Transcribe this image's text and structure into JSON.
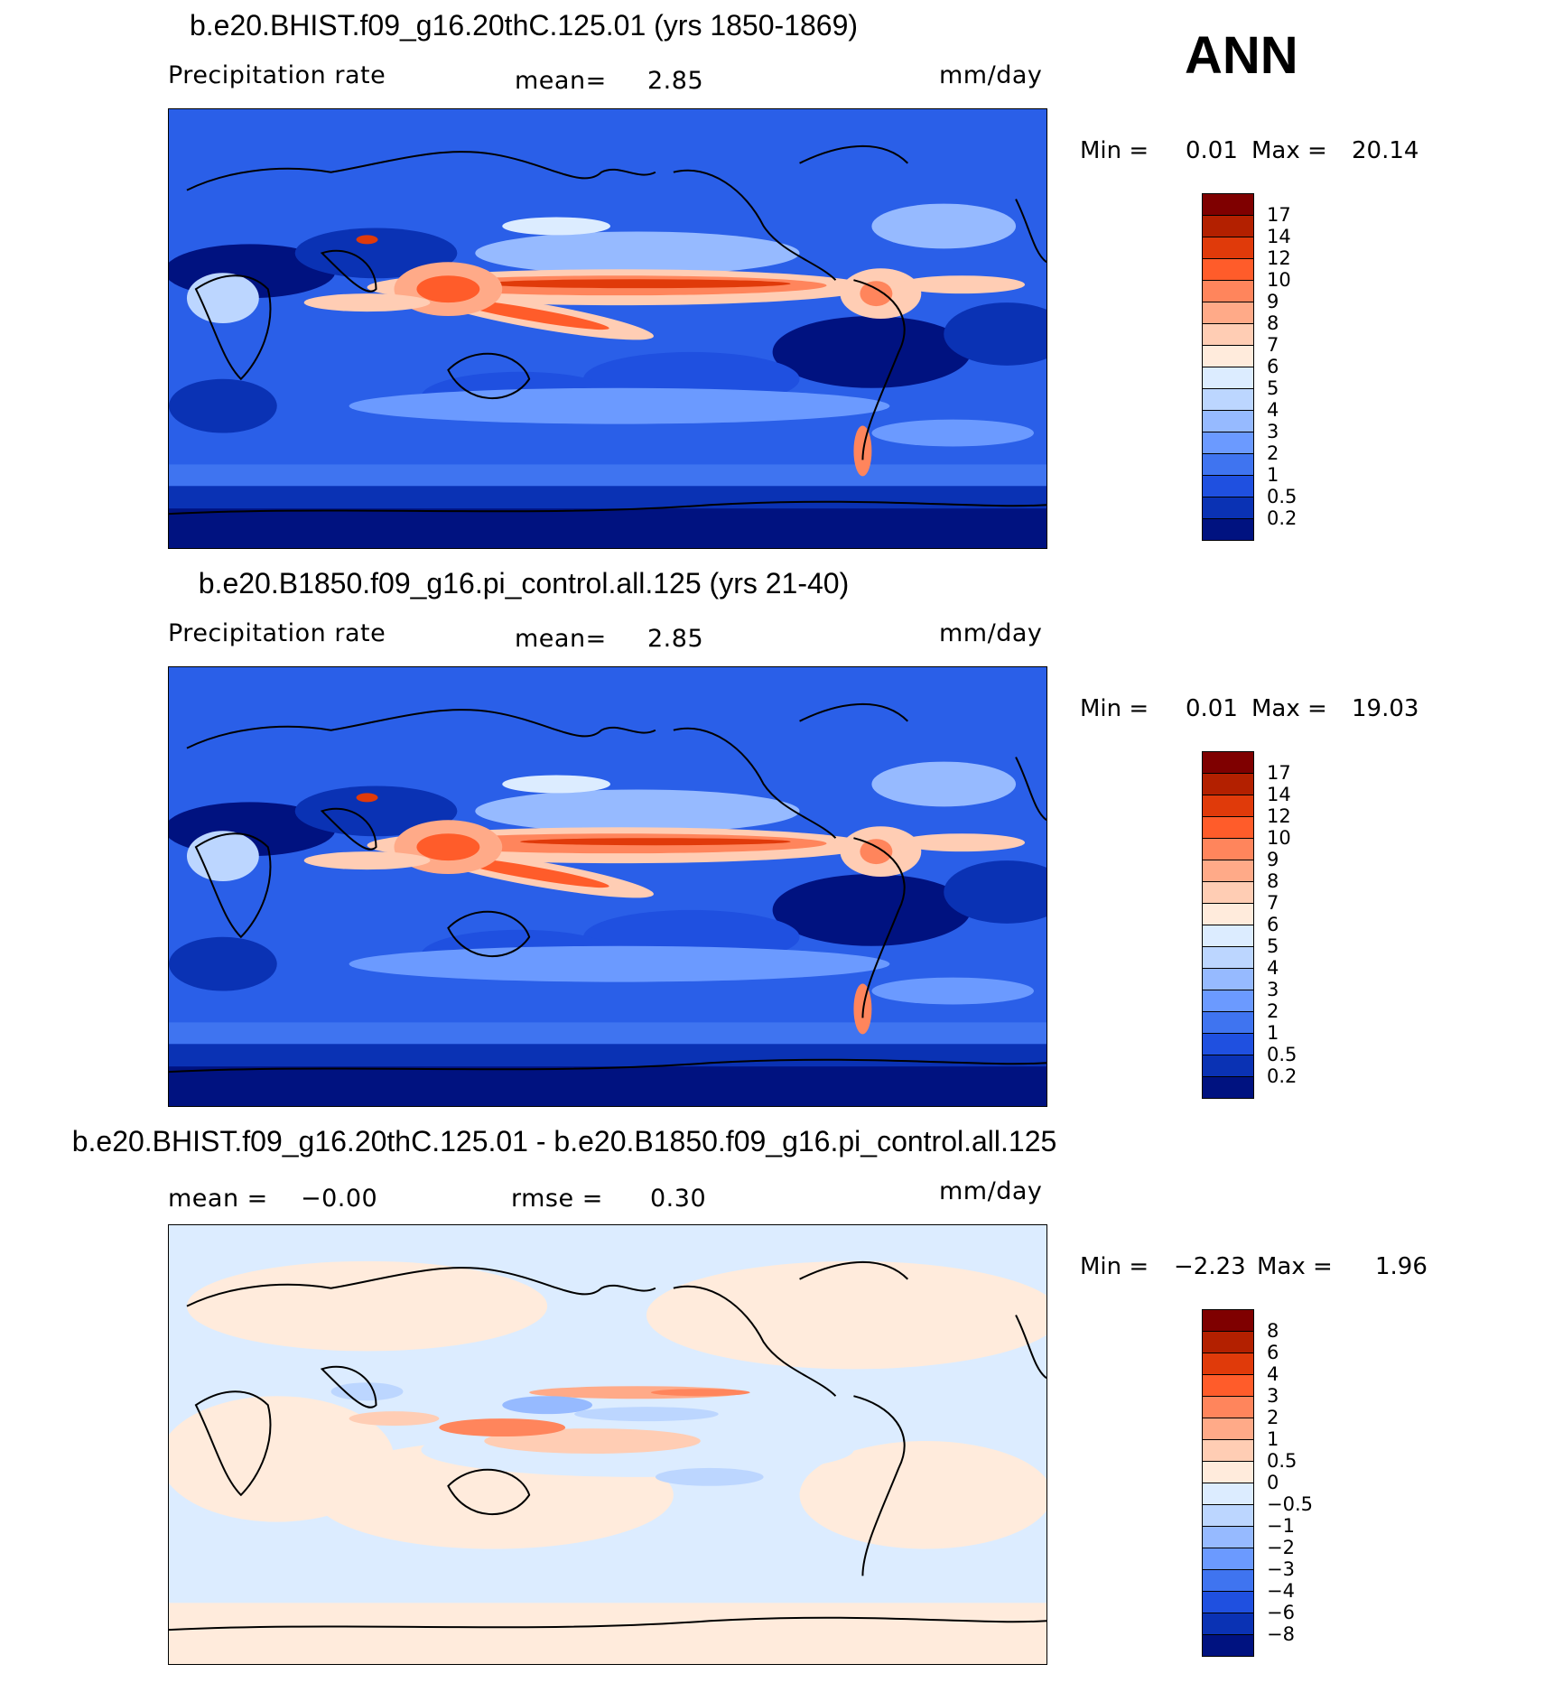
{
  "season": "ANN",
  "panels": [
    {
      "title": "b.e20.BHIST.f09_g16.20thC.125.01 (yrs 1850-1869)",
      "left_label": "Precipitation rate",
      "mid_label": "mean=",
      "mid_value": "2.85",
      "units": "mm/day",
      "min_label": "Min =",
      "min_value": "0.01",
      "max_label": "Max =",
      "max_value": "20.14",
      "colorbar_labels": [
        "17",
        "14",
        "12",
        "10",
        "9",
        "8",
        "7",
        "6",
        "5",
        "4",
        "3",
        "2",
        "1",
        "0.5",
        "0.2"
      ],
      "colorbar_colors": [
        "#7f0000",
        "#b32000",
        "#e03a0a",
        "#ff5c2a",
        "#ff855c",
        "#ffaa88",
        "#ffcdb4",
        "#ffebdc",
        "#dcecff",
        "#bcd6ff",
        "#96baff",
        "#6b9aff",
        "#3f74f0",
        "#1f50e0",
        "#0a32b4",
        "#001280"
      ]
    },
    {
      "title": "b.e20.B1850.f09_g16.pi_control.all.125 (yrs 21-40)",
      "left_label": "Precipitation rate",
      "mid_label": "mean=",
      "mid_value": "2.85",
      "units": "mm/day",
      "min_label": "Min =",
      "min_value": "0.01",
      "max_label": "Max =",
      "max_value": "19.03",
      "colorbar_labels": [
        "17",
        "14",
        "12",
        "10",
        "9",
        "8",
        "7",
        "6",
        "5",
        "4",
        "3",
        "2",
        "1",
        "0.5",
        "0.2"
      ],
      "colorbar_colors": [
        "#7f0000",
        "#b32000",
        "#e03a0a",
        "#ff5c2a",
        "#ff855c",
        "#ffaa88",
        "#ffcdb4",
        "#ffebdc",
        "#dcecff",
        "#bcd6ff",
        "#96baff",
        "#6b9aff",
        "#3f74f0",
        "#1f50e0",
        "#0a32b4",
        "#001280"
      ]
    },
    {
      "title": "b.e20.BHIST.f09_g16.20thC.125.01 - b.e20.B1850.f09_g16.pi_control.all.125",
      "left_label": "mean =",
      "left_value": "−0.00",
      "mid_label": "rmse =",
      "mid_value": "0.30",
      "units": "mm/day",
      "min_label": "Min =",
      "min_value": "−2.23",
      "max_label": "Max =",
      "max_value": "1.96",
      "colorbar_labels": [
        "8",
        "6",
        "4",
        "3",
        "2",
        "1",
        "0.5",
        "0",
        "−0.5",
        "−1",
        "−2",
        "−3",
        "−4",
        "−6",
        "−8"
      ],
      "colorbar_colors": [
        "#7f0000",
        "#b32000",
        "#e03a0a",
        "#ff5c2a",
        "#ff855c",
        "#ffaa88",
        "#ffcdb4",
        "#ffebdc",
        "#dcecff",
        "#bcd6ff",
        "#96baff",
        "#6b9aff",
        "#3f74f0",
        "#1f50e0",
        "#0a32b4",
        "#001280"
      ]
    }
  ]
}
